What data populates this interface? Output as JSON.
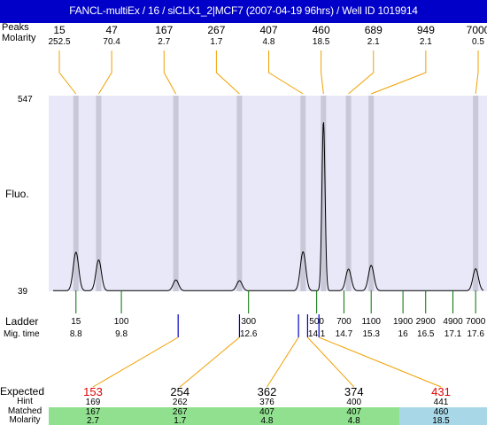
{
  "title": "FANCL-multiEx / 16 / siCLK1_2|MCF7 (2007-04-19 96hrs) / Well ID 1019914",
  "colors": {
    "title_bg": "#0000c8",
    "plot_bg": "#e8e8f8",
    "band": "#c8c8d8",
    "orange": "#f0a000",
    "ladder_tick": "#007000",
    "blue_tick": "#0000c8",
    "expected_red": "#e00000",
    "matched_green": "#90e090",
    "matched_blue": "#a8d8e8"
  },
  "chart_data": {
    "type": "electropherogram",
    "ylabel": "Fluo.",
    "y_axis_ticks": [
      "547",
      "39"
    ],
    "ylim": [
      39,
      547
    ],
    "x_axis": "Mig. time",
    "xlim": [
      8.2,
      17.85
    ],
    "top_labels": {
      "row1_label": "Peaks",
      "row2_label": "Molarity",
      "peaks": [
        {
          "size": "15",
          "molarity": "252.5",
          "time": 8.8
        },
        {
          "size": "47",
          "molarity": "70.4",
          "time": 9.3
        },
        {
          "size": "167",
          "molarity": "2.7",
          "time": 11.0
        },
        {
          "size": "267",
          "molarity": "1.7",
          "time": 12.4
        },
        {
          "size": "407",
          "molarity": "4.8",
          "time": 13.8
        },
        {
          "size": "460",
          "molarity": "18.5",
          "time": 14.25
        },
        {
          "size": "689",
          "molarity": "2.1",
          "time": 14.8
        },
        {
          "size": "949",
          "molarity": "2.1",
          "time": 15.3
        },
        {
          "size": "7000",
          "molarity": "0.5",
          "time": 17.6
        }
      ]
    },
    "trace_peaks": [
      {
        "time": 8.8,
        "height": 100
      },
      {
        "time": 9.3,
        "height": 80
      },
      {
        "time": 11.0,
        "height": 28
      },
      {
        "time": 12.4,
        "height": 26
      },
      {
        "time": 13.8,
        "height": 101
      },
      {
        "time": 14.25,
        "height": 439
      },
      {
        "time": 14.8,
        "height": 56
      },
      {
        "time": 15.3,
        "height": 66
      },
      {
        "time": 17.6,
        "height": 57
      }
    ],
    "ladder": {
      "label": "Ladder",
      "time_label": "Mig. time",
      "points": [
        {
          "size": "15",
          "time": "8.8",
          "t": 8.8
        },
        {
          "size": "100",
          "time": "9.8",
          "t": 9.8
        },
        {
          "size": "300",
          "time": "12.6",
          "t": 12.6
        },
        {
          "size": "500",
          "time": "14.1",
          "t": 14.1
        },
        {
          "size": "700",
          "time": "14.7",
          "t": 14.7
        },
        {
          "size": "1100",
          "time": "15.3",
          "t": 15.3
        },
        {
          "size": "1900",
          "time": "16",
          "t": 16.0
        },
        {
          "size": "2900",
          "time": "16.5",
          "t": 16.5
        },
        {
          "size": "4900",
          "time": "17.1",
          "t": 17.1
        },
        {
          "size": "7000",
          "time": "17.6",
          "t": 17.6
        }
      ]
    },
    "expected": {
      "row_labels": [
        "Expected",
        "Hint",
        "Matched",
        "Molarity"
      ],
      "columns": [
        {
          "expected": "153",
          "hint": "169",
          "matched": "167",
          "molarity": "2.7",
          "red": true,
          "match_color": "green",
          "marker_times": [
            11.05
          ]
        },
        {
          "expected": "254",
          "hint": "262",
          "matched": "267",
          "molarity": "1.7",
          "red": false,
          "match_color": "green",
          "marker_times": [
            12.4
          ]
        },
        {
          "expected": "362",
          "hint": "376",
          "matched": "407",
          "molarity": "4.8",
          "red": false,
          "match_color": "green",
          "marker_times": [
            13.7
          ]
        },
        {
          "expected": "374",
          "hint": "400",
          "matched": "407",
          "molarity": "4.8",
          "red": false,
          "match_color": "green",
          "marker_times": [
            13.9
          ]
        },
        {
          "expected": "431",
          "hint": "441",
          "matched": "460",
          "molarity": "18.5",
          "red": true,
          "match_color": "blue",
          "marker_times": [
            14.15
          ]
        }
      ]
    }
  }
}
